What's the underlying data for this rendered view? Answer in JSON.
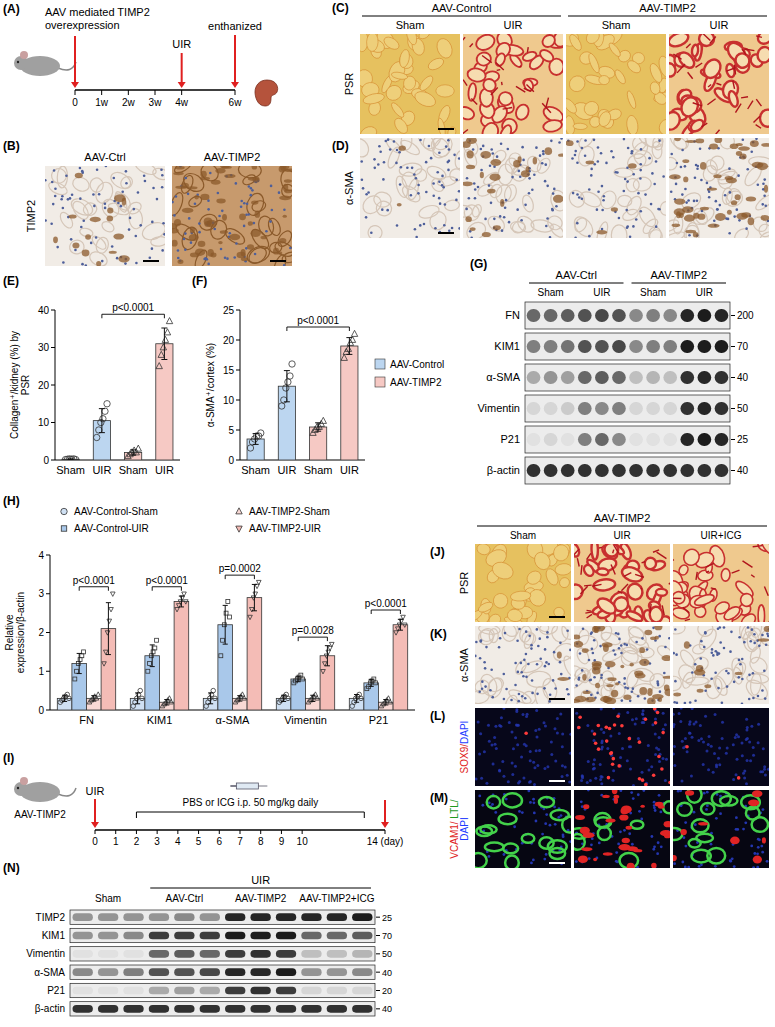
{
  "panel_letters": {
    "A": "(A)",
    "B": "(B)",
    "C": "(C)",
    "D": "(D)",
    "E": "(E)",
    "F": "(F)",
    "G": "(G)",
    "H": "(H)",
    "I": "(I)",
    "J": "(J)",
    "K": "(K)",
    "L": "(L)",
    "M": "(M)",
    "N": "(N)"
  },
  "A": {
    "title": "AAV mediated TIMP2 overexpression",
    "xlim": [
      0,
      6
    ],
    "xticks": [
      0,
      {
        "value": 1,
        "label": "1w"
      },
      {
        "value": 2,
        "label": "2w"
      },
      {
        "value": 3,
        "label": "3w"
      },
      {
        "value": 4,
        "label": "4w"
      },
      {
        "value": 6,
        "label": "6w"
      }
    ],
    "events": [
      {
        "label": "UIR",
        "at": 4
      },
      {
        "label": "enthanized",
        "at": 6
      }
    ]
  },
  "B": {
    "row_label": "TIMP2",
    "columns": [
      "AAV-Ctrl",
      "AAV-TIMP2"
    ]
  },
  "C": {
    "groups": [
      "AAV-Control",
      "AAV-TIMP2"
    ],
    "columns": [
      "Sham",
      "UIR",
      "Sham",
      "UIR"
    ],
    "row_label": "PSR"
  },
  "D": {
    "row_label": "α-SMA"
  },
  "chart_data": [
    {
      "type": "bar",
      "y_label": "Collagen⁺/kidney (%) by PSR",
      "categories": [
        "Sham",
        "UIR",
        "Sham",
        "UIR"
      ],
      "ylim": [
        0,
        40
      ],
      "yticks": [
        0,
        10,
        20,
        30,
        40
      ],
      "series": [
        {
          "color": "#bcd6f0",
          "marker": "circle",
          "values": [
            0.2,
            10.5,
            null,
            null
          ],
          "errors": [
            0.1,
            3.2,
            null,
            null
          ],
          "points": [
            [
              0.1,
              0.2,
              0.3,
              0.2,
              0.3,
              0.1
            ],
            [
              6,
              8,
              10,
              11,
              13,
              15
            ],
            null,
            null
          ]
        },
        {
          "color": "#f6c9c4",
          "marker": "triangle",
          "values": [
            null,
            null,
            2,
            31
          ],
          "errors": [
            null,
            null,
            0.7,
            4.2
          ],
          "points": [
            null,
            null,
            [
              1,
              1.5,
              2,
              2.5,
              2,
              3
            ],
            [
              25,
              28,
              30,
              32,
              34,
              37
            ]
          ]
        }
      ],
      "annotations": [
        {
          "text": "p<0.0001",
          "from": 1,
          "to": 3
        }
      ]
    },
    {
      "type": "bar",
      "y_label": "α-SMA⁺/cortex (%)",
      "categories": [
        "Sham",
        "UIR",
        "Sham",
        "UIR"
      ],
      "ylim": [
        0,
        25
      ],
      "yticks": [
        0,
        5,
        10,
        15,
        20,
        25
      ],
      "legend": "right",
      "series": [
        {
          "name": "AAV-Control",
          "color": "#bcd6f0",
          "marker": "circle",
          "values": [
            3.5,
            12.3,
            null,
            null
          ],
          "errors": [
            0.9,
            2.6,
            null,
            null
          ],
          "points": [
            [
              2,
              3,
              3.5,
              4,
              4,
              4.5
            ],
            [
              9,
              10,
              12,
              13,
              14,
              16
            ],
            null,
            null
          ]
        },
        {
          "name": "AAV-TIMP2",
          "color": "#f6c9c4",
          "marker": "triangle",
          "values": [
            null,
            null,
            5.5,
            19
          ],
          "errors": [
            null,
            null,
            0.7,
            1.4
          ],
          "points": [
            null,
            null,
            [
              4.5,
              5,
              5.5,
              5.5,
              6,
              6.5
            ],
            [
              17,
              18,
              18.5,
              19.5,
              20,
              21
            ]
          ]
        }
      ],
      "annotations": [
        {
          "text": "p<0.0001",
          "from": 1,
          "to": 3
        }
      ]
    },
    {
      "type": "bar",
      "y_label": "Relative expression/β-actin",
      "categories": [
        "FN",
        "KIM1",
        "α-SMA",
        "Vimentin",
        "P21"
      ],
      "ylim": [
        0,
        4
      ],
      "yticks": [
        0,
        1,
        2,
        3,
        4
      ],
      "legend": "top",
      "series": [
        {
          "name": "AAV-Control-Sham",
          "color": "#cfe0f3",
          "marker": "circle",
          "values": [
            0.3,
            0.3,
            0.3,
            0.3,
            0.3
          ],
          "errors": [
            0.08,
            0.14,
            0.14,
            0.08,
            0.1
          ],
          "points": [
            [
              0.2,
              0.25,
              0.3,
              0.35,
              0.4,
              0.3
            ],
            [
              0.1,
              0.2,
              0.3,
              0.4,
              0.5,
              0.3
            ],
            [
              0.1,
              0.2,
              0.3,
              0.4,
              0.5,
              0.3
            ],
            [
              0.2,
              0.25,
              0.3,
              0.35,
              0.4,
              0.3
            ],
            [
              0.1,
              0.2,
              0.3,
              0.35,
              0.4,
              0.3
            ]
          ]
        },
        {
          "name": "AAV-Control-UIR",
          "color": "#a9c8ea",
          "marker": "square",
          "values": [
            1.2,
            1.4,
            2.2,
            0.8,
            0.7
          ],
          "errors": [
            0.26,
            0.28,
            0.5,
            0.07,
            0.09
          ],
          "points": [
            [
              0.8,
              1.0,
              1.2,
              1.3,
              1.4,
              1.5
            ],
            [
              1.0,
              1.2,
              1.4,
              1.5,
              1.6,
              1.8
            ],
            [
              1.4,
              1.8,
              2.2,
              2.5,
              2.8,
              2.4
            ],
            [
              0.7,
              0.75,
              0.8,
              0.85,
              0.9,
              0.8
            ],
            [
              0.55,
              0.6,
              0.7,
              0.75,
              0.8,
              0.7
            ]
          ]
        },
        {
          "name": "AAV-TIMP2-Sham",
          "color": "#f9d9d5",
          "marker": "triangle",
          "values": [
            0.3,
            0.2,
            0.3,
            0.3,
            0.2
          ],
          "errors": [
            0.07,
            0.07,
            0.07,
            0.08,
            0.07
          ],
          "points": [
            [
              0.2,
              0.25,
              0.3,
              0.35,
              0.3,
              0.4
            ],
            [
              0.1,
              0.15,
              0.2,
              0.25,
              0.3,
              0.2
            ],
            [
              0.2,
              0.25,
              0.3,
              0.35,
              0.4,
              0.3
            ],
            [
              0.2,
              0.25,
              0.3,
              0.35,
              0.4,
              0.3
            ],
            [
              0.1,
              0.15,
              0.2,
              0.25,
              0.3,
              0.2
            ]
          ]
        },
        {
          "name": "AAV-TIMP2-UIR",
          "color": "#f4bcb6",
          "marker": "triangle-down",
          "values": [
            2.1,
            2.8,
            2.9,
            1.4,
            2.2
          ],
          "errors": [
            0.67,
            0.14,
            0.34,
            0.26,
            0.14
          ],
          "points": [
            [
              1.2,
              1.5,
              2.0,
              2.3,
              2.6,
              3.0
            ],
            [
              2.6,
              2.7,
              2.8,
              2.9,
              3.0,
              2.8
            ],
            [
              2.4,
              2.6,
              2.9,
              3.0,
              3.2,
              3.3
            ],
            [
              1.0,
              1.2,
              1.4,
              1.5,
              1.6,
              1.7
            ],
            [
              2.0,
              2.1,
              2.2,
              2.3,
              2.4,
              2.2
            ]
          ]
        }
      ],
      "annotations": [
        {
          "text": "p<0.0001",
          "category": 0,
          "from": 1,
          "to": 3
        },
        {
          "text": "p<0.0001",
          "category": 1,
          "from": 1,
          "to": 3
        },
        {
          "text": "p=0.0002",
          "category": 2,
          "from": 1,
          "to": 3
        },
        {
          "text": "p=0.0028",
          "category": 3,
          "from": 1,
          "to": 3
        },
        {
          "text": "p<0.0001",
          "category": 4,
          "from": 1,
          "to": 3
        }
      ]
    }
  ],
  "G": {
    "groups": [
      "AAV-Ctrl",
      "AAV-TIMP2"
    ],
    "conditions": [
      "Sham",
      "UIR",
      "Sham",
      "UIR"
    ],
    "rows": [
      {
        "label": "FN",
        "mw": 200,
        "bands": [
          0.6,
          0.6,
          0.65,
          0.7,
          0.75,
          0.7,
          0.45,
          0.5,
          0.45,
          0.9,
          0.95,
          0.9
        ]
      },
      {
        "label": "KIM1",
        "mw": 70,
        "bands": [
          0.5,
          0.5,
          0.55,
          0.7,
          0.7,
          0.75,
          0.45,
          0.5,
          0.5,
          0.95,
          0.95,
          0.95
        ]
      },
      {
        "label": "α-SMA",
        "mw": 40,
        "bands": [
          0.3,
          0.4,
          0.35,
          0.6,
          0.65,
          0.6,
          0.2,
          0.25,
          0.2,
          0.85,
          0.9,
          0.85
        ]
      },
      {
        "label": "Vimentin",
        "mw": 50,
        "bands": [
          0.1,
          0.1,
          0.15,
          0.5,
          0.45,
          0.5,
          0.1,
          0.1,
          0.1,
          0.85,
          0.9,
          0.85
        ]
      },
      {
        "label": "P21",
        "mw": 25,
        "bands": [
          0.05,
          0.1,
          0.05,
          0.5,
          0.6,
          0.45,
          0.05,
          0.05,
          0.05,
          0.9,
          0.95,
          0.9
        ]
      },
      {
        "label": "β-actin",
        "mw": 40,
        "bands": [
          0.85,
          0.85,
          0.85,
          0.85,
          0.85,
          0.85,
          0.85,
          0.85,
          0.85,
          0.85,
          0.85,
          0.85
        ]
      }
    ]
  },
  "I": {
    "mouse_label": "AAV-TIMP2",
    "event": "UIR",
    "treatment": "PBS or ICG i.p. 50 mg/kg daily",
    "treatment_window": [
      2,
      13
    ],
    "xlim": [
      0,
      14
    ],
    "xticks": [
      0,
      1,
      2,
      3,
      4,
      5,
      6,
      7,
      8,
      9,
      10,
      {
        "value": 14,
        "label": "14 (day)"
      }
    ]
  },
  "J": {
    "group": "AAV-TIMP2",
    "columns": [
      "Sham",
      "UIR",
      "UIR+ICG"
    ],
    "row_label": "PSR"
  },
  "K": {
    "row_label": "α-SMA"
  },
  "L": {
    "row_label": "SOX9/DAPI"
  },
  "M": {
    "row_label": "VCAM1/ LTL/DAPI"
  },
  "N": {
    "header": "UIR",
    "groups": [
      "Sham",
      "AAV-Ctrl",
      "AAV-TIMP2",
      "AAV-TIMP2+ICG"
    ],
    "rows": [
      {
        "label": "TIMP2",
        "mw": 25,
        "bands": [
          0.4,
          0.4,
          0.4,
          0.4,
          0.45,
          0.4,
          0.9,
          0.9,
          0.9,
          0.9,
          0.9,
          0.95
        ]
      },
      {
        "label": "KIM1",
        "mw": 70,
        "bands": [
          0.4,
          0.4,
          0.45,
          0.8,
          0.8,
          0.8,
          0.95,
          0.95,
          0.95,
          0.6,
          0.6,
          0.65
        ]
      },
      {
        "label": "Vimentin",
        "mw": 50,
        "bands": [
          0.05,
          0.05,
          0.05,
          0.6,
          0.65,
          0.6,
          0.8,
          0.85,
          0.8,
          0.2,
          0.2,
          0.25
        ]
      },
      {
        "label": "α-SMA",
        "mw": 40,
        "bands": [
          0.45,
          0.4,
          0.5,
          0.7,
          0.7,
          0.75,
          0.9,
          0.9,
          0.95,
          0.4,
          0.4,
          0.45
        ]
      },
      {
        "label": "P21",
        "mw": 20,
        "bands": [
          0.05,
          0.05,
          0.05,
          0.3,
          0.35,
          0.3,
          0.8,
          0.85,
          0.8,
          0.1,
          0.1,
          0.1
        ]
      },
      {
        "label": "β-actin",
        "mw": 40,
        "bands": [
          0.85,
          0.85,
          0.85,
          0.85,
          0.85,
          0.85,
          0.85,
          0.85,
          0.85,
          0.85,
          0.85,
          0.85
        ]
      }
    ]
  }
}
